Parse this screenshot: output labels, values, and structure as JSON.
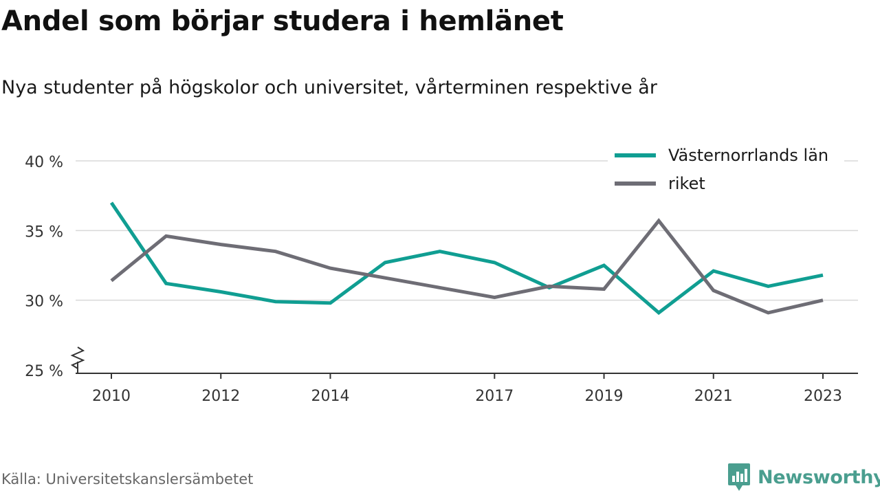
{
  "header": {
    "title": "Andel som börjar studera i hemlänet",
    "subtitle": "Nya studenter på högskolor och universitet, vårterminen respektive år"
  },
  "footer": {
    "source": "Källa: Universitetskanslersämbetet",
    "brand": "Newsworthy"
  },
  "colors": {
    "vasternorrland": "#109e92",
    "riket": "#6e6d75",
    "brand": "#4a9e8f",
    "grid": "#d8d8d8"
  },
  "chart_data": {
    "type": "line",
    "x": [
      2010,
      2011,
      2012,
      2013,
      2014,
      2015,
      2016,
      2017,
      2018,
      2019,
      2020,
      2021,
      2022,
      2023
    ],
    "x_ticks": [
      "2010",
      "2012",
      "2014",
      "2017",
      "2019",
      "2021",
      "2023"
    ],
    "y_ticks": [
      "25 %",
      "30 %",
      "35 %",
      "40 %"
    ],
    "ylim": [
      25,
      40
    ],
    "y_axis_break": true,
    "grid": true,
    "legend_position": "top-right",
    "series": [
      {
        "name": "Västernorrlands län",
        "color": "#109e92",
        "values": [
          37.0,
          31.2,
          30.6,
          29.9,
          29.8,
          32.7,
          33.5,
          32.7,
          30.9,
          32.5,
          29.1,
          32.1,
          31.0,
          31.8
        ]
      },
      {
        "name": "riket",
        "color": "#6e6d75",
        "values": [
          31.4,
          34.6,
          34.0,
          33.5,
          32.3,
          31.6,
          30.9,
          30.2,
          31.0,
          30.8,
          35.7,
          30.7,
          29.1,
          30.0
        ]
      }
    ]
  }
}
